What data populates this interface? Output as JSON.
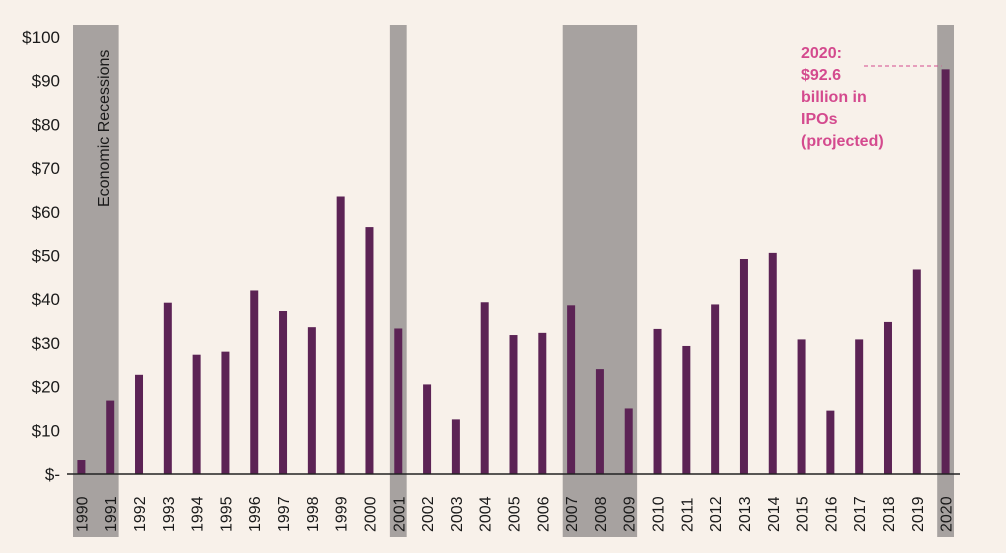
{
  "chart_data": {
    "type": "bar",
    "title": "",
    "xlabel": "",
    "ylabel": "",
    "ylim": [
      0,
      100
    ],
    "yticks": [
      {
        "value": 0,
        "label": "$-"
      },
      {
        "value": 10,
        "label": "$10"
      },
      {
        "value": 20,
        "label": "$20"
      },
      {
        "value": 30,
        "label": "$30"
      },
      {
        "value": 40,
        "label": "$40"
      },
      {
        "value": 50,
        "label": "$50"
      },
      {
        "value": 60,
        "label": "$60"
      },
      {
        "value": 70,
        "label": "$70"
      },
      {
        "value": 80,
        "label": "$80"
      },
      {
        "value": 90,
        "label": "$90"
      },
      {
        "value": 100,
        "label": "$100"
      }
    ],
    "categories": [
      "1990",
      "1991",
      "1992",
      "1993",
      "1994",
      "1995",
      "1996",
      "1997",
      "1998",
      "1999",
      "2000",
      "2001",
      "2002",
      "2003",
      "2004",
      "2005",
      "2006",
      "2007",
      "2008",
      "2009",
      "2010",
      "2011",
      "2012",
      "2013",
      "2014",
      "2015",
      "2016",
      "2017",
      "2018",
      "2019",
      "2020"
    ],
    "values": [
      3.2,
      16.8,
      22.7,
      39.2,
      27.3,
      28.0,
      42.0,
      37.3,
      33.6,
      63.5,
      56.5,
      33.3,
      20.5,
      12.5,
      39.3,
      31.8,
      32.3,
      38.6,
      24.0,
      15.0,
      33.2,
      29.3,
      38.8,
      49.2,
      50.6,
      30.8,
      14.5,
      30.8,
      34.8,
      46.8,
      92.6
    ],
    "bar_color": "#5c2355",
    "recession_color": "#a7a2a0",
    "recessions": [
      {
        "start": "1990",
        "end": "1991"
      },
      {
        "start": "2001",
        "end": "2001"
      },
      {
        "start": "2007",
        "end": "2009"
      },
      {
        "start": "2020",
        "end": "2020"
      }
    ],
    "recession_label": "Economic Recessions",
    "annotation": {
      "target": "2020",
      "lines": [
        "2020:",
        "$92.6",
        "billion in",
        "IPOs",
        "(projected)"
      ],
      "color": "#d44a8e"
    }
  }
}
